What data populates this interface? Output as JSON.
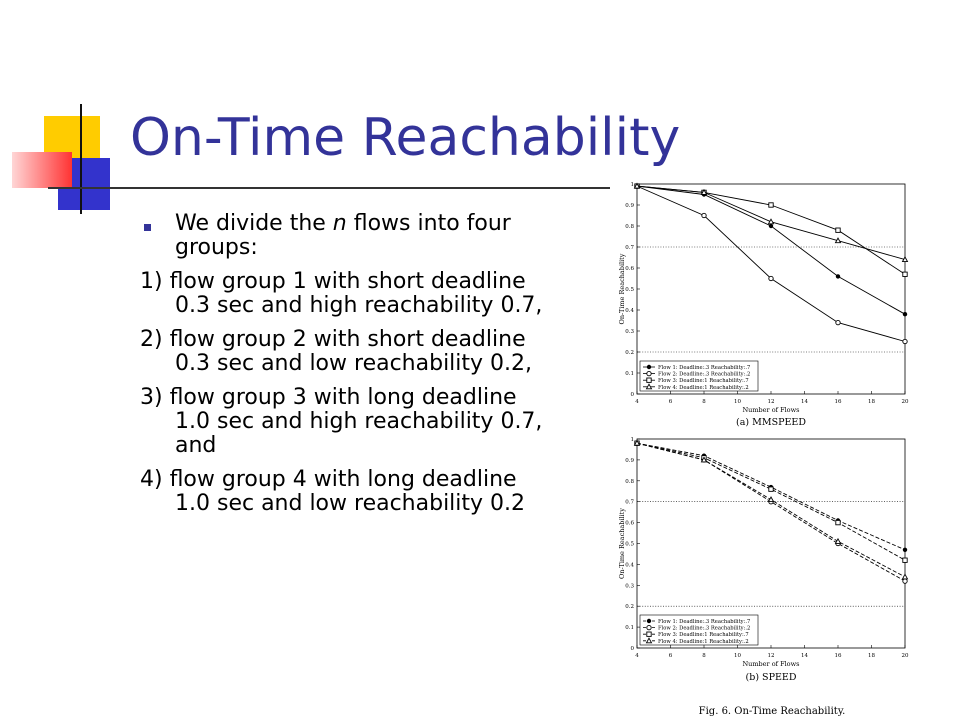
{
  "slide": {
    "title": "On-Time Reachability",
    "bullet": {
      "pre": "We divide the ",
      "italic": "n",
      "post": " flows into four",
      "cont": "groups:"
    },
    "items": [
      {
        "line1": "1) flow group 1 with short deadline",
        "line2": "0.3 sec and high reachability 0.7,"
      },
      {
        "line1": "2) flow group 2 with short deadline",
        "line2": "0.3 sec and low reachability 0.2,"
      },
      {
        "line1": "3) flow group 3 with long deadline",
        "line2": "1.0 sec and high reachability 0.7,",
        "line3": "and"
      },
      {
        "line1": "4) flow group 4 with long deadline",
        "line2": "1.0 sec and low reachability 0.2"
      }
    ],
    "figure_caption": "Fig. 6.    On-Time Reachability."
  },
  "colors": {
    "title": "#333399",
    "bullet": "#333399",
    "deco_yellow": "#FFCC00",
    "deco_red": "#FF3333",
    "deco_blue": "#3333CC"
  },
  "chart_data": [
    {
      "type": "line",
      "title": "(a) MMSPEED",
      "xlabel": "Number of Flows",
      "ylabel": "On-Time Reachability",
      "x": [
        4,
        8,
        12,
        16,
        20
      ],
      "xticks": [
        "4",
        "6",
        "8",
        "10",
        "12",
        "14",
        "16",
        "18",
        "20"
      ],
      "yticks": [
        "0",
        "0.1",
        "0.2",
        "0.3",
        "0.4",
        "0.5",
        "0.6",
        "0.7",
        "0.8",
        "0.9",
        "1"
      ],
      "xlim": [
        4,
        20
      ],
      "ylim": [
        0,
        1
      ],
      "reference_lines": [
        0.7,
        0.2
      ],
      "legend_position": "bottom-left",
      "series": [
        {
          "name": "Flow 1: Deadline:.3 Reachability:.7",
          "values": [
            0.99,
            0.95,
            0.8,
            0.56,
            0.38
          ],
          "dash": false
        },
        {
          "name": "Flow 2: Deadline:.3 Reachability:.2",
          "values": [
            0.99,
            0.85,
            0.55,
            0.34,
            0.25
          ],
          "dash": false
        },
        {
          "name": "Flow 3: Deadline:1 Reachability:.7",
          "values": [
            0.99,
            0.96,
            0.9,
            0.78,
            0.57
          ],
          "dash": false
        },
        {
          "name": "Flow 4: Deadline:1 Reachability:.2",
          "values": [
            0.99,
            0.96,
            0.82,
            0.73,
            0.64
          ],
          "dash": false
        }
      ]
    },
    {
      "type": "line",
      "title": "(b) SPEED",
      "xlabel": "Number of Flows",
      "ylabel": "On-Time Reachability",
      "x": [
        4,
        8,
        12,
        16,
        20
      ],
      "xticks": [
        "4",
        "6",
        "8",
        "10",
        "12",
        "14",
        "16",
        "18",
        "20"
      ],
      "yticks": [
        "0",
        "0.1",
        "0.2",
        "0.3",
        "0.4",
        "0.5",
        "0.6",
        "0.7",
        "0.8",
        "0.9",
        "1"
      ],
      "xlim": [
        4,
        20
      ],
      "ylim": [
        0,
        1
      ],
      "reference_lines": [
        0.7,
        0.2
      ],
      "legend_position": "bottom-left",
      "series": [
        {
          "name": "Flow 1: Deadline:.3 Reachability:.7",
          "values": [
            0.98,
            0.92,
            0.77,
            0.61,
            0.47
          ],
          "dash": true
        },
        {
          "name": "Flow 2: Deadline:.3 Reachability:.2",
          "values": [
            0.98,
            0.9,
            0.7,
            0.5,
            0.32
          ],
          "dash": true
        },
        {
          "name": "Flow 3: Deadline:1 Reachability:.7",
          "values": [
            0.98,
            0.91,
            0.76,
            0.6,
            0.42
          ],
          "dash": true
        },
        {
          "name": "Flow 4: Deadline:1 Reachability:.2",
          "values": [
            0.98,
            0.9,
            0.71,
            0.51,
            0.34
          ],
          "dash": true
        }
      ]
    }
  ]
}
